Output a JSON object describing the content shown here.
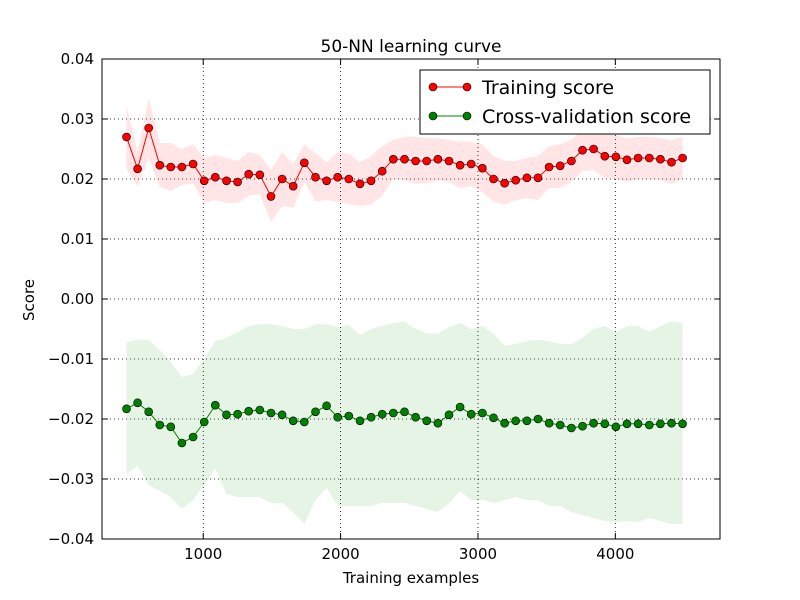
{
  "chart_data": {
    "type": "line",
    "title": "50-NN learning curve",
    "xlabel": "Training examples",
    "ylabel": "Score",
    "xlim": [
      263,
      4762
    ],
    "ylim": [
      -0.04,
      0.04
    ],
    "grid": true,
    "legend_position": "top-right",
    "x_ticks": [
      1000,
      2000,
      3000,
      4000
    ],
    "x_tick_labels": [
      "1000",
      "2000",
      "3000",
      "4000"
    ],
    "y_ticks": [
      -0.04,
      -0.03,
      -0.02,
      -0.01,
      0.0,
      0.01,
      0.02,
      0.03,
      0.04
    ],
    "y_tick_labels": [
      "−0.04",
      "−0.03",
      "−0.02",
      "−0.01",
      "0.00",
      "0.01",
      "0.02",
      "0.03",
      "0.04"
    ],
    "x": [
      441,
      522,
      603,
      684,
      764,
      845,
      926,
      1007,
      1088,
      1169,
      1250,
      1331,
      1412,
      1493,
      1574,
      1655,
      1736,
      1817,
      1898,
      1979,
      2060,
      2141,
      2222,
      2303,
      2384,
      2465,
      2546,
      2627,
      2708,
      2789,
      2870,
      2951,
      3032,
      3113,
      3194,
      3275,
      3356,
      3437,
      3518,
      3599,
      3680,
      3761,
      3842,
      3923,
      4004,
      4085,
      4166,
      4247,
      4328,
      4409,
      4490
    ],
    "series": [
      {
        "name": "Training score",
        "color": "#ff0000",
        "band_color": "#ffaaaa",
        "values": [
          0.027,
          0.0217,
          0.0285,
          0.0223,
          0.022,
          0.022,
          0.0225,
          0.0197,
          0.0203,
          0.0197,
          0.0195,
          0.0208,
          0.0207,
          0.0171,
          0.02,
          0.0188,
          0.0227,
          0.0203,
          0.0197,
          0.0203,
          0.02,
          0.0192,
          0.0197,
          0.0213,
          0.0233,
          0.0233,
          0.023,
          0.023,
          0.0233,
          0.023,
          0.0223,
          0.0225,
          0.0218,
          0.02,
          0.0193,
          0.0198,
          0.0202,
          0.0202,
          0.022,
          0.0222,
          0.023,
          0.0248,
          0.025,
          0.0238,
          0.0237,
          0.0232,
          0.0235,
          0.0235,
          0.0233,
          0.0228,
          0.0235
        ],
        "upper": [
          0.0323,
          0.0245,
          0.0335,
          0.026,
          0.026,
          0.025,
          0.0258,
          0.0235,
          0.024,
          0.0235,
          0.023,
          0.0245,
          0.024,
          0.0215,
          0.0245,
          0.0225,
          0.0258,
          0.0243,
          0.0228,
          0.0245,
          0.0242,
          0.0228,
          0.0238,
          0.0255,
          0.0265,
          0.027,
          0.027,
          0.0268,
          0.0268,
          0.0265,
          0.0262,
          0.0262,
          0.0258,
          0.0238,
          0.023,
          0.023,
          0.0235,
          0.0238,
          0.0255,
          0.0258,
          0.0265,
          0.0282,
          0.0285,
          0.0275,
          0.0273,
          0.0268,
          0.027,
          0.027,
          0.0268,
          0.0265,
          0.027
        ],
        "lower": [
          0.0217,
          0.0188,
          0.0235,
          0.0187,
          0.018,
          0.019,
          0.0192,
          0.016,
          0.0165,
          0.016,
          0.016,
          0.0172,
          0.0175,
          0.0128,
          0.0155,
          0.0152,
          0.0195,
          0.0163,
          0.0165,
          0.0162,
          0.0158,
          0.0155,
          0.0157,
          0.0172,
          0.02,
          0.0198,
          0.0192,
          0.0193,
          0.0198,
          0.0195,
          0.0185,
          0.0188,
          0.0178,
          0.0162,
          0.0157,
          0.0165,
          0.0168,
          0.0165,
          0.0185,
          0.0185,
          0.0195,
          0.0213,
          0.0215,
          0.0202,
          0.02,
          0.0195,
          0.02,
          0.02,
          0.0198,
          0.0192,
          0.02
        ]
      },
      {
        "name": "Cross-validation score",
        "color": "#008000",
        "band_color": "#a9d9a9",
        "values": [
          -0.0183,
          -0.0173,
          -0.0188,
          -0.021,
          -0.0213,
          -0.024,
          -0.023,
          -0.0205,
          -0.0177,
          -0.0193,
          -0.0192,
          -0.0187,
          -0.0185,
          -0.019,
          -0.0193,
          -0.0203,
          -0.0205,
          -0.0188,
          -0.0178,
          -0.0197,
          -0.0195,
          -0.0203,
          -0.0197,
          -0.0192,
          -0.019,
          -0.0188,
          -0.0197,
          -0.0203,
          -0.0207,
          -0.0193,
          -0.018,
          -0.0192,
          -0.019,
          -0.0198,
          -0.0207,
          -0.0203,
          -0.0203,
          -0.02,
          -0.0207,
          -0.021,
          -0.0215,
          -0.0212,
          -0.0207,
          -0.0208,
          -0.0213,
          -0.0208,
          -0.0208,
          -0.021,
          -0.0208,
          -0.0207,
          -0.0208
        ],
        "upper": [
          -0.0072,
          -0.0068,
          -0.0068,
          -0.0085,
          -0.0105,
          -0.013,
          -0.0125,
          -0.01,
          -0.007,
          -0.0065,
          -0.0055,
          -0.0045,
          -0.0042,
          -0.0042,
          -0.0045,
          -0.005,
          -0.005,
          -0.0042,
          -0.0042,
          -0.0047,
          -0.0043,
          -0.006,
          -0.005,
          -0.0045,
          -0.004,
          -0.0038,
          -0.005,
          -0.0057,
          -0.0058,
          -0.0047,
          -0.004,
          -0.005,
          -0.0045,
          -0.0058,
          -0.0078,
          -0.0075,
          -0.007,
          -0.0068,
          -0.007,
          -0.0075,
          -0.0075,
          -0.0065,
          -0.005,
          -0.0045,
          -0.0055,
          -0.0045,
          -0.0045,
          -0.0055,
          -0.0045,
          -0.0038,
          -0.004
        ],
        "lower": [
          -0.0292,
          -0.0278,
          -0.031,
          -0.032,
          -0.033,
          -0.035,
          -0.0335,
          -0.031,
          -0.0282,
          -0.0325,
          -0.033,
          -0.033,
          -0.033,
          -0.034,
          -0.034,
          -0.0355,
          -0.0375,
          -0.0335,
          -0.0315,
          -0.0345,
          -0.0345,
          -0.0345,
          -0.0345,
          -0.034,
          -0.034,
          -0.034,
          -0.0345,
          -0.035,
          -0.0355,
          -0.034,
          -0.032,
          -0.0335,
          -0.0335,
          -0.034,
          -0.0335,
          -0.033,
          -0.0335,
          -0.0335,
          -0.0345,
          -0.0345,
          -0.0355,
          -0.036,
          -0.0365,
          -0.037,
          -0.0372,
          -0.037,
          -0.0372,
          -0.0365,
          -0.037,
          -0.0375,
          -0.0375
        ]
      }
    ]
  }
}
